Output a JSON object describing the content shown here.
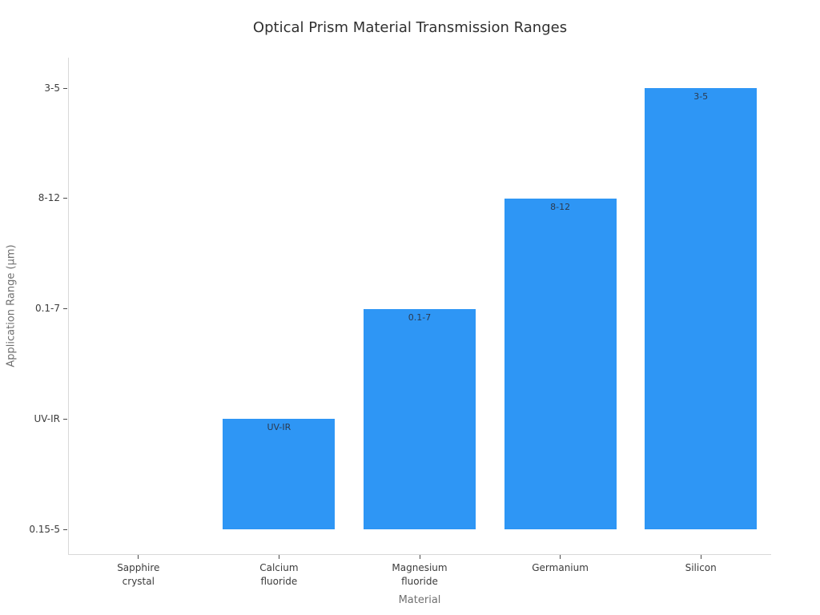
{
  "chart_data": {
    "type": "bar",
    "title": "Optical Prism Material Transmission Ranges",
    "xlabel": "Material",
    "ylabel": "Application Range (μm)",
    "categories": [
      "Sapphire\ncrystal",
      "Calcium\nfluoride",
      "Magnesium\nfluoride",
      "Germanium",
      "Silicon"
    ],
    "values": [
      "0.15-5",
      "UV-IR",
      "0.1-7",
      "8-12",
      "3-5"
    ],
    "bar_labels": [
      "",
      "UV-IR",
      "0.1-7",
      "8-12",
      "3-5"
    ],
    "y_axis": {
      "type": "category",
      "tick_labels": [
        "0.15-5",
        "UV-IR",
        "0.1-7",
        "8-12",
        "3-5"
      ]
    },
    "layout_hints": {
      "grid": false,
      "legend": false,
      "bar_text_position": "inside-top",
      "zero_height_category": "Sapphire crystal"
    },
    "colors": {
      "bar": "#2E96F5",
      "title_text": "#303030",
      "tick_text": "#3c3c3c",
      "axis_title_text": "#707070",
      "spine": "#d9d9d9",
      "bar_label_text": "#2b3a4f"
    }
  }
}
